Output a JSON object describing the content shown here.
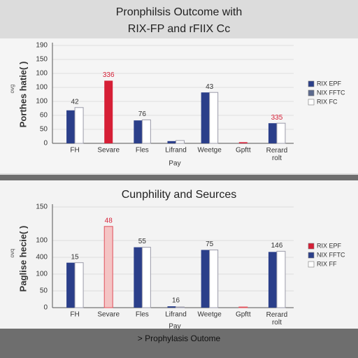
{
  "chart_data": [
    {
      "type": "bar",
      "title": [
        "Pronphilsis Outcome with",
        "RIX-FP and rFIIX Cc"
      ],
      "ylabel": "Porthes hatie( )",
      "ylabel_note": "ovg",
      "xlabel": "Pay",
      "categories": [
        "FH",
        "Sevare",
        "Fles",
        "Lifrand",
        "Weetge",
        "Gpftt",
        [
          "Rerard",
          "rolt"
        ]
      ],
      "series": [
        {
          "name": "RIX EPF",
          "color": "#2b3f8a",
          "colors": [
            "#2b3f8a",
            "#d61f36",
            "#2b3f8a",
            "#2b3f8a",
            "#2b3f8a",
            "#d61f36",
            "#2b3f8a"
          ],
          "values": [
            59,
            112,
            41,
            4,
            91,
            2,
            36
          ]
        },
        {
          "name": "NIX FFTC",
          "color": "#5c6a8e",
          "values": [
            null,
            null,
            null,
            null,
            null,
            null,
            null
          ]
        },
        {
          "name": "RIX FC",
          "color": "#ffffff",
          "edgecolor": "#9a9aa8",
          "values": [
            64,
            null,
            42,
            5,
            91,
            null,
            36
          ]
        }
      ],
      "annotations": [
        {
          "text": "42",
          "category": 0,
          "color": "#333333"
        },
        {
          "text": "336",
          "category": 1,
          "color": "#d61f36"
        },
        {
          "text": "76",
          "category": 2,
          "color": "#333333"
        },
        {
          "text": "43",
          "category": 4,
          "color": "#333333"
        },
        {
          "text": "335",
          "category": 6,
          "color": "#d61f36"
        }
      ],
      "ylim": [
        0,
        175
      ],
      "yticks": [
        0,
        {
          "value": 25,
          "label": "50"
        },
        {
          "value": 50,
          "label": "60"
        },
        {
          "value": 75,
          "label": "100"
        },
        {
          "value": 100,
          "label": "100"
        },
        {
          "value": 125,
          "label": "100"
        },
        {
          "value": 150,
          "label": "150"
        },
        {
          "value": 175,
          "label": "190"
        }
      ],
      "grid": true,
      "legend": "right"
    },
    {
      "type": "bar",
      "title": [
        "Cunphility and Seurces"
      ],
      "ylabel": "Paglise hecie( )",
      "ylabel_note": "ovq",
      "xlabel": "Pay",
      "categories": [
        "FH",
        "Sevare",
        "Fles",
        "Lifrand",
        "Weetge",
        "Gpftt",
        [
          "Rerard",
          "rolt"
        ]
      ],
      "series": [
        {
          "name": "RIX EPF",
          "color": "#f4c4c4",
          "edgecolor": "#e0505a",
          "legend_color": "#d61f36",
          "values": [
            null,
            121,
            null,
            null,
            null,
            1,
            null
          ]
        },
        {
          "name": "NIX FFTC",
          "color": "#2b3f8a",
          "values": [
            67,
            null,
            90,
            2,
            86,
            null,
            83
          ]
        },
        {
          "name": "RIX FF",
          "color": "#ffffff",
          "edgecolor": "#9a9aa8",
          "values": [
            67,
            null,
            90,
            1,
            86,
            null,
            84
          ]
        }
      ],
      "annotations": [
        {
          "text": "15",
          "category": 0,
          "color": "#333333"
        },
        {
          "text": "48",
          "category": 1,
          "color": "#d61f36"
        },
        {
          "text": "55",
          "category": 2,
          "color": "#333333"
        },
        {
          "text": "16",
          "category": 3,
          "color": "#333333"
        },
        {
          "text": "75",
          "category": 4,
          "color": "#333333"
        },
        {
          "text": "146",
          "category": 6,
          "color": "#333333"
        }
      ],
      "ylim": [
        0,
        150
      ],
      "yticks": [
        0,
        {
          "value": 25,
          "label": "50"
        },
        {
          "value": 50,
          "label": "100"
        },
        {
          "value": 75,
          "label": "400"
        },
        {
          "value": 100,
          "label": "100"
        },
        150
      ],
      "grid": true,
      "legend": "right"
    }
  ],
  "footer": "> Prophylasis Outome"
}
